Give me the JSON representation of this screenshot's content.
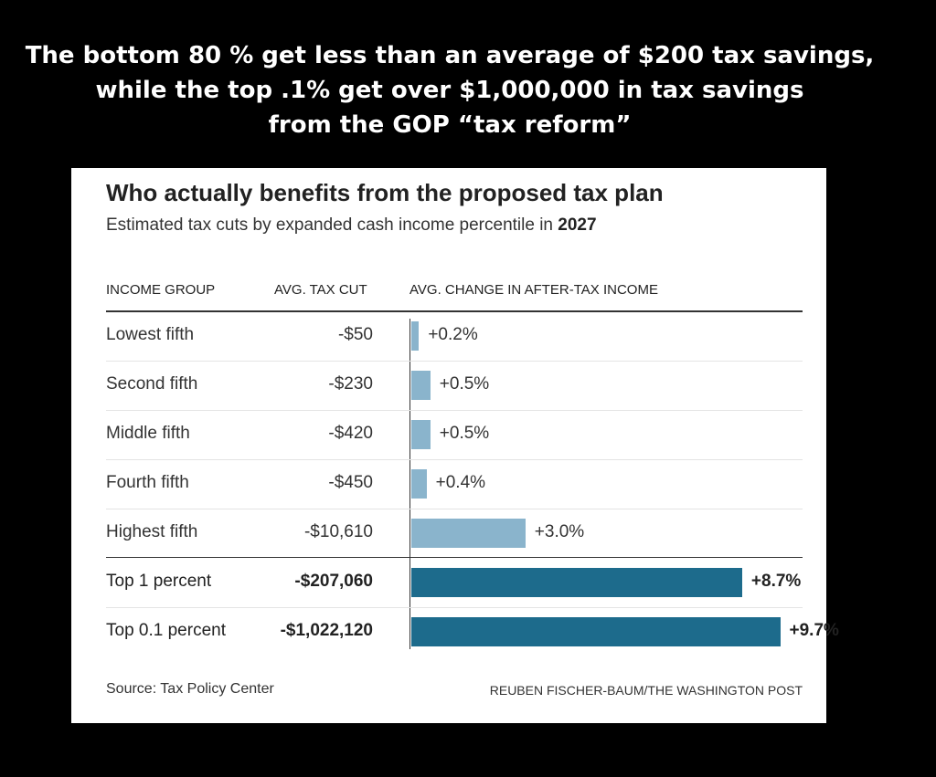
{
  "headline": {
    "line1": "The bottom 80 % get less than an average of $200 tax savings,",
    "line2": "while the top .1% get over $1,000,000 in tax savings",
    "line3": "from the GOP “tax reform”"
  },
  "chart_data": {
    "type": "table",
    "title": "Who actually benefits from the proposed tax plan",
    "subtitle_prefix": "Estimated tax cuts by expanded cash income percentile in ",
    "subtitle_year": "2027",
    "columns": [
      "INCOME GROUP",
      "AVG. TAX CUT",
      "AVG. CHANGE IN AFTER-TAX INCOME"
    ],
    "rows": [
      {
        "group": "Lowest fifth",
        "tax_cut": "-$50",
        "change_label": "+0.2%",
        "change": 0.2,
        "highlight": false
      },
      {
        "group": "Second fifth",
        "tax_cut": "-$230",
        "change_label": "+0.5%",
        "change": 0.5,
        "highlight": false
      },
      {
        "group": "Middle fifth",
        "tax_cut": "-$420",
        "change_label": "+0.5%",
        "change": 0.5,
        "highlight": false
      },
      {
        "group": "Fourth fifth",
        "tax_cut": "-$450",
        "change_label": "+0.4%",
        "change": 0.4,
        "highlight": false
      },
      {
        "group": "Highest fifth",
        "tax_cut": "-$10,610",
        "change_label": "+3.0%",
        "change": 3.0,
        "highlight": false
      },
      {
        "group": "Top 1 percent",
        "tax_cut": "-$207,060",
        "change_label": "+8.7%",
        "change": 8.7,
        "highlight": true
      },
      {
        "group": "Top 0.1 percent",
        "tax_cut": "-$1,022,120",
        "change_label": "+9.7%",
        "change": 9.7,
        "highlight": true
      }
    ],
    "colors": {
      "light": "#8ab4cc",
      "dark": "#1d6b8c"
    },
    "source": "Source: Tax Policy Center",
    "credit": "REUBEN FISCHER-BAUM/THE WASHINGTON POST"
  }
}
